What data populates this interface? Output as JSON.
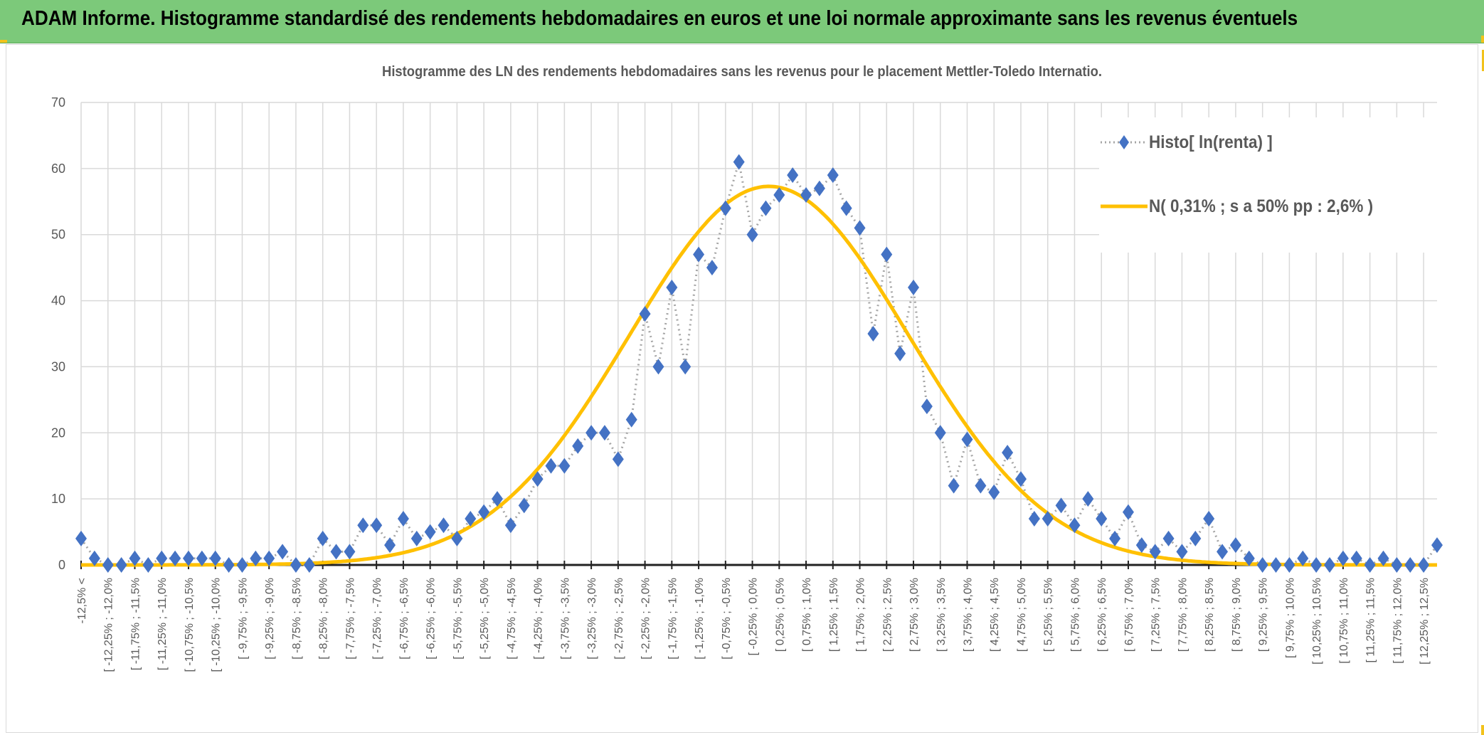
{
  "header": {
    "title": "ADAM Informe. Histogramme standardisé des rendements hebdomadaires en euros et une loi normale approximante sans les revenus éventuels"
  },
  "colors": {
    "header_bg": "#7cc97a",
    "series_marker": "#4472c4",
    "series_line": "#a6a6a6",
    "normal_curve": "#ffc000"
  },
  "chart_data": {
    "type": "line",
    "title": "Histogramme des LN des rendements hebdomadaires sans les revenus pour le placement Mettler-Toledo Internatio.",
    "xlabel": "",
    "ylabel": "",
    "ylim": [
      0,
      70
    ],
    "yticks": [
      "0",
      "10",
      "20",
      "30",
      "40",
      "50",
      "60",
      "70"
    ],
    "grid": true,
    "legend_position": "top-right",
    "category_count": 102,
    "visible_tick_labels": [
      "-12,5% <",
      "[ -12,25% ; -12,0%",
      "[ -11,75% ; -11,5%",
      "[ -11,25% ; -11,0%",
      "[ -10,75% ; -10,5%",
      "[ -10,25% ; -10,0%",
      "[ -9,75% ; -9,5%",
      "[ -9,25% ; -9,0%",
      "[ -8,75% ; -8,5%",
      "[ -8,25% ; -8,0%",
      "[ -7,75% ; -7,5%",
      "[ -7,25% ; -7,0%",
      "[ -6,75% ; -6,5%",
      "[ -6,25% ; -6,0%",
      "[ -5,75% ; -5,5%",
      "[ -5,25% ; -5,0%",
      "[ -4,75% ; -4,5%",
      "[ -4,25% ; -4,0%",
      "[ -3,75% ; -3,5%",
      "[ -3,25% ; -3,0%",
      "[ -2,75% ; -2,5%",
      "[ -2,25% ; -2,0%",
      "[ -1,75% ; -1,5%",
      "[ -1,25% ; -1,0%",
      "[ -0,75% ; -0,5%",
      "[ -0,25% ; 0,0%",
      "[ 0,25% ; 0,5%",
      "[ 0,75% ; 1,0%",
      "[ 1,25% ; 1,5%",
      "[ 1,75% ; 2,0%",
      "[ 2,25% ; 2,5%",
      "[ 2,75% ; 3,0%",
      "[ 3,25% ; 3,5%",
      "[ 3,75% ; 4,0%",
      "[ 4,25% ; 4,5%",
      "[ 4,75% ; 5,0%",
      "[ 5,25% ; 5,5%",
      "[ 5,75% ; 6,0%",
      "[ 6,25% ; 6,5%",
      "[ 6,75% ; 7,0%",
      "[ 7,25% ; 7,5%",
      "[ 7,75% ; 8,0%",
      "[ 8,25% ; 8,5%",
      "[ 8,75% ; 9,0%",
      "[ 9,25% ; 9,5%",
      "[ 9,75% ; 10,0%",
      "[ 10,25% ; 10,5%",
      "[ 10,75% ; 11,0%",
      "[ 11,25% ; 11,5%",
      "[ 11,75% ; 12,0%",
      "[ 12,25% ; 12,5%"
    ],
    "series": [
      {
        "name": "Histo[ ln(renta) ]",
        "type": "line-markers",
        "values": [
          4,
          1,
          0,
          0,
          1,
          0,
          1,
          1,
          1,
          1,
          1,
          0,
          0,
          1,
          1,
          2,
          0,
          0,
          4,
          2,
          2,
          6,
          6,
          3,
          7,
          4,
          5,
          6,
          4,
          7,
          8,
          10,
          6,
          9,
          13,
          15,
          15,
          18,
          20,
          20,
          16,
          22,
          38,
          30,
          42,
          30,
          47,
          45,
          54,
          61,
          50,
          54,
          56,
          59,
          56,
          57,
          59,
          54,
          51,
          35,
          47,
          32,
          42,
          24,
          20,
          12,
          19,
          12,
          11,
          17,
          13,
          7,
          7,
          9,
          6,
          10,
          7,
          4,
          8,
          3,
          2,
          4,
          2,
          4,
          7,
          2,
          3,
          1,
          0,
          0,
          0,
          1,
          0,
          0,
          1,
          1,
          0,
          1,
          0,
          0,
          0,
          3
        ]
      },
      {
        "name": "N( 0,31% ; s a 50% pp : 2,6% )",
        "type": "normal-curve",
        "mean_pct": 0.31,
        "sd_pct": 2.6,
        "peak_value": 57.3,
        "x_start_pct": -12.5,
        "bin_width_pct": 0.25
      }
    ]
  }
}
